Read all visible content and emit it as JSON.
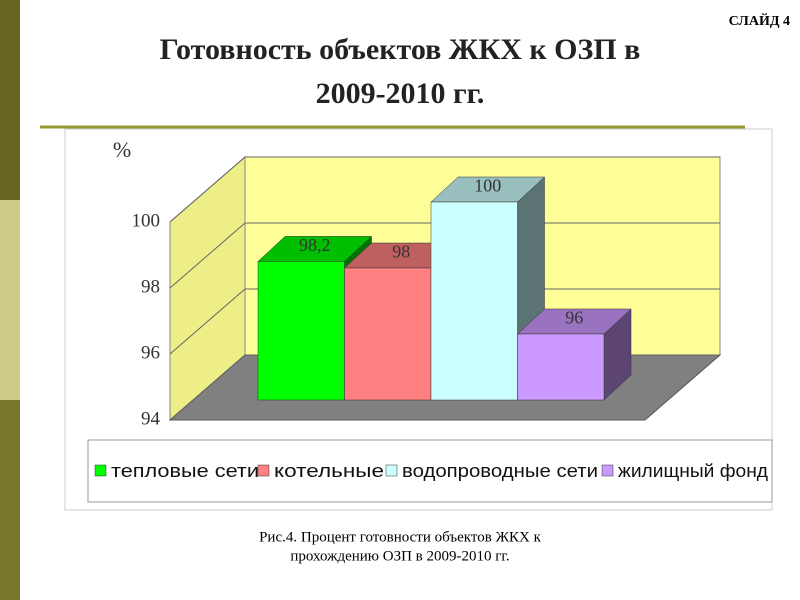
{
  "slide_label": "СЛАЙД 4",
  "title_lines": [
    "Готовность объектов ЖКХ к ОЗП в",
    "2009-2010 гг."
  ],
  "caption_lines": [
    "Рис.4. Процент готовности объектов ЖКХ к",
    "прохождению ОЗП в 2009-2010 гг."
  ],
  "chart_data": {
    "type": "bar3d",
    "y_label": "%",
    "categories": [
      "тепловые сети",
      "котельные",
      "водопроводные сети",
      "жилищный фонд"
    ],
    "values": [
      98.2,
      98,
      100,
      96
    ],
    "value_labels": [
      "98,2",
      "98",
      "100",
      "96"
    ],
    "colors": [
      "#00ff00",
      "#ff8080",
      "#ccffff",
      "#cc99ff"
    ],
    "ylim": [
      94,
      100
    ],
    "yticks": [
      94,
      96,
      98,
      100
    ],
    "grid": true
  }
}
